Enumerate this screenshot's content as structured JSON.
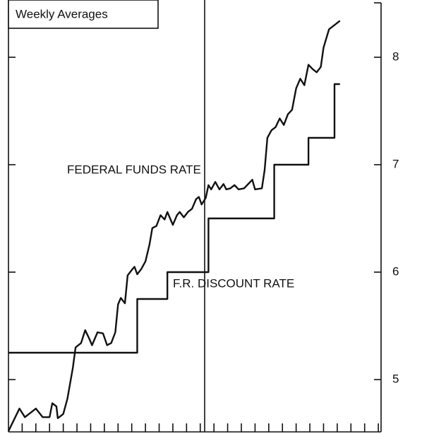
{
  "chart_data": {
    "type": "line",
    "title": "Weekly Averages",
    "series": [
      {
        "name": "FEDERAL FUNDS RATE",
        "color": "#111111",
        "x": [
          0,
          0.8,
          1.2,
          2.0,
          2.5,
          3.0,
          3.2,
          3.5,
          3.6,
          4.0,
          4.3,
          4.7,
          4.9,
          5.3,
          5.6,
          5.9,
          6.1,
          6.5,
          6.9,
          7.2,
          7.5,
          7.8,
          8.0,
          8.2,
          8.5,
          8.7,
          9.0,
          9.2,
          9.4,
          9.7,
          10.0,
          10.3,
          10.5,
          10.8,
          11.1,
          11.4,
          11.6,
          12.0,
          12.3,
          12.5,
          12.8,
          13.1,
          13.4,
          13.7,
          13.9,
          14.1,
          14.4,
          14.6,
          14.8,
          15.1,
          15.4,
          15.7,
          15.9,
          16.2,
          16.5,
          16.8,
          17.2,
          17.5,
          17.8,
          18.0,
          18.5,
          18.7,
          18.9,
          19.2,
          19.5,
          19.8,
          20.1,
          20.4,
          20.7,
          21.0,
          21.3,
          21.6,
          21.9,
          22.2,
          22.5,
          22.8,
          23.0,
          23.4,
          23.8,
          24.2
        ],
        "values": [
          4.52,
          4.73,
          4.65,
          4.73,
          4.65,
          4.65,
          4.78,
          4.75,
          4.64,
          4.68,
          4.82,
          5.11,
          5.3,
          5.34,
          5.46,
          5.38,
          5.32,
          5.44,
          5.43,
          5.32,
          5.34,
          5.44,
          5.7,
          5.76,
          5.71,
          5.97,
          6.02,
          6.05,
          5.98,
          6.03,
          6.1,
          6.26,
          6.41,
          6.43,
          6.53,
          6.49,
          6.56,
          6.44,
          6.53,
          6.56,
          6.51,
          6.56,
          6.59,
          6.68,
          6.7,
          6.63,
          6.69,
          6.81,
          6.77,
          6.84,
          6.77,
          6.82,
          6.77,
          6.78,
          6.81,
          6.77,
          6.78,
          6.82,
          6.86,
          6.77,
          6.78,
          6.95,
          7.25,
          7.32,
          7.35,
          7.43,
          7.37,
          7.47,
          7.51,
          7.71,
          7.8,
          7.74,
          7.93,
          7.89,
          7.86,
          7.91,
          8.09,
          8.26,
          8.3,
          8.34
        ]
      },
      {
        "name": "F.R. DISCOUNT RATE",
        "color": "#111111",
        "x": [
          0,
          9.4,
          9.4,
          11.6,
          11.6,
          14.6,
          14.6,
          19.4,
          19.4,
          21.9,
          21.9,
          23.8,
          23.8,
          24.2
        ],
        "values": [
          5.25,
          5.25,
          5.75,
          5.75,
          6.0,
          6.0,
          6.5,
          6.5,
          7.0,
          7.0,
          7.25,
          7.25,
          7.75,
          7.75
        ]
      }
    ],
    "xlim": [
      0,
      27.2
    ],
    "xticks": [
      1,
      2,
      3,
      4,
      5,
      6,
      7,
      8,
      9,
      10,
      11,
      12,
      13,
      14,
      15,
      16,
      17,
      18,
      19,
      20,
      21,
      22,
      23,
      24,
      25,
      26,
      27
    ],
    "ylim": [
      4.5,
      8.5
    ],
    "yticks": [
      5,
      6,
      7,
      8
    ]
  }
}
